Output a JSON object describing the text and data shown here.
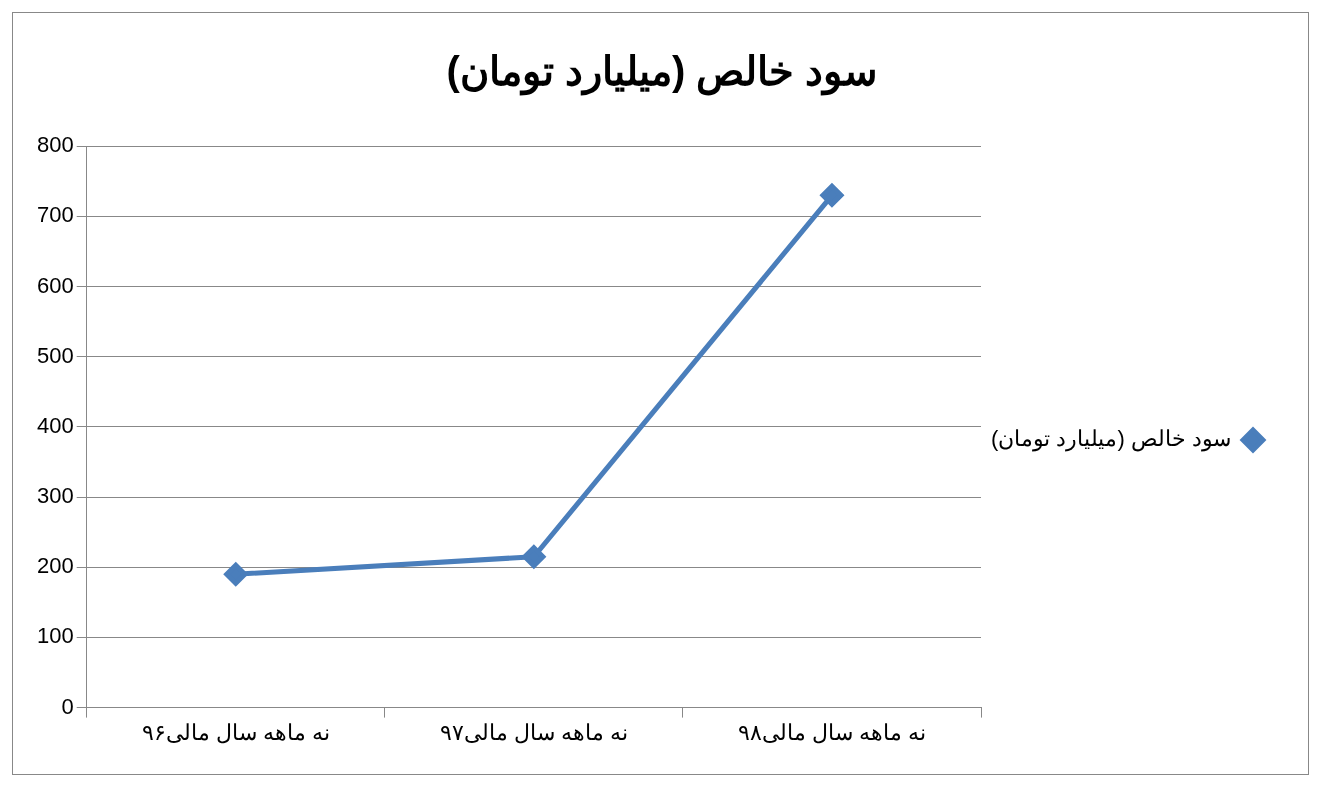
{
  "chart_data": {
    "type": "line",
    "title": "سود خالص (میلیارد تومان)",
    "categories": [
      "نه ماهه سال مالی۹۶",
      "نه ماهه سال مالی۹۷",
      "نه ماهه سال مالی۹۸"
    ],
    "series": [
      {
        "name": "سود خالص (میلیارد تومان)",
        "color": "#4a7ebb",
        "values": [
          190,
          215,
          730
        ]
      }
    ],
    "ylim": [
      0,
      800
    ],
    "yticks": [
      0,
      100,
      200,
      300,
      400,
      500,
      600,
      700,
      800
    ],
    "grid": "y",
    "legend": "right",
    "marker": "diamond",
    "line_style": "solid"
  }
}
